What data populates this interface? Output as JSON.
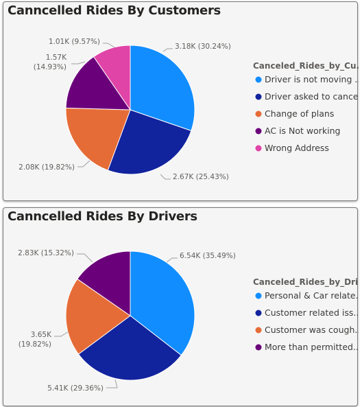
{
  "chart_data": [
    {
      "type": "pie",
      "title": "Canncelled Rides By Customers",
      "legend_title": "Canceled_Rides_by_Cu...",
      "legend_position": "right",
      "slices": [
        {
          "name": "Driver is not moving ...",
          "value": 3180,
          "label": "3.18K (30.24%)",
          "color": "#118dff"
        },
        {
          "name": "Driver asked to cancel",
          "value": 2670,
          "label": "2.67K (25.43%)",
          "color": "#12239e"
        },
        {
          "name": "Change of plans",
          "value": 2080,
          "label": "2.08K (19.82%)",
          "color": "#e66c37"
        },
        {
          "name": "AC is Not working",
          "value": 1570,
          "label": "1.57K (14.93%)",
          "color": "#6b007b"
        },
        {
          "name": "Wrong Address",
          "value": 1010,
          "label": "1.01K (9.57%)",
          "color": "#e044a7"
        }
      ]
    },
    {
      "type": "pie",
      "title": "Canncelled Rides By Drivers",
      "legend_title": "Canceled_Rides_by_Dri...",
      "legend_position": "right",
      "slices": [
        {
          "name": "Personal & Car relate...",
          "value": 6540,
          "label": "6.54K (35.49%)",
          "color": "#118dff"
        },
        {
          "name": "Customer related iss...",
          "value": 5410,
          "label": "5.41K (29.36%)",
          "color": "#12239e"
        },
        {
          "name": "Customer was cough...",
          "value": 3650,
          "label": "3.65K (19.82%)",
          "color": "#e66c37"
        },
        {
          "name": "More than permitted...",
          "value": 2830,
          "label": "2.83K (15.32%)",
          "color": "#6b007b"
        }
      ]
    }
  ]
}
